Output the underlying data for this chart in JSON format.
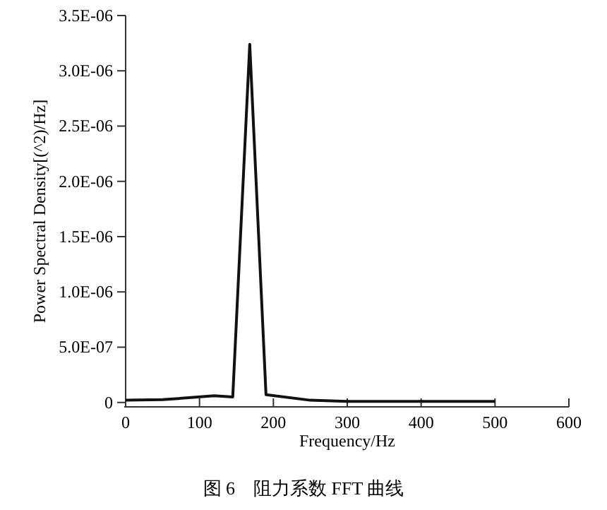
{
  "chart_data": {
    "type": "line",
    "xlabel": "Frequency/Hz",
    "ylabel": "Power Spectral Density[(^2)/Hz]",
    "x": [
      0,
      50,
      120,
      145,
      168,
      190,
      250,
      300,
      400,
      500
    ],
    "values": [
      2e-08,
      2.5e-08,
      6e-08,
      5e-08,
      3.24e-06,
      7e-08,
      2e-08,
      1e-08,
      1e-08,
      1e-08
    ],
    "color": "#111111",
    "marker": "none",
    "line_style": "solid",
    "grid": false,
    "legend": false,
    "xlim": [
      0,
      600
    ],
    "xticks": [
      0,
      100,
      200,
      300,
      400,
      500,
      600
    ],
    "ylim": [
      -4e-08,
      3.5e-06
    ],
    "yticks": [
      {
        "value": 0,
        "label": "0"
      },
      {
        "value": 5e-07,
        "label": "5.0E-07"
      },
      {
        "value": 1e-06,
        "label": "1.0E-06"
      },
      {
        "value": 1.5e-06,
        "label": "1.5E-06"
      },
      {
        "value": 2e-06,
        "label": "2.0E-06"
      },
      {
        "value": 2.5e-06,
        "label": "2.5E-06"
      },
      {
        "value": 3e-06,
        "label": "3.0E-06"
      },
      {
        "value": 3.5e-06,
        "label": "3.5E-06"
      }
    ],
    "annotations": [
      "图 6　阻力系数 FFT 曲线"
    ]
  }
}
